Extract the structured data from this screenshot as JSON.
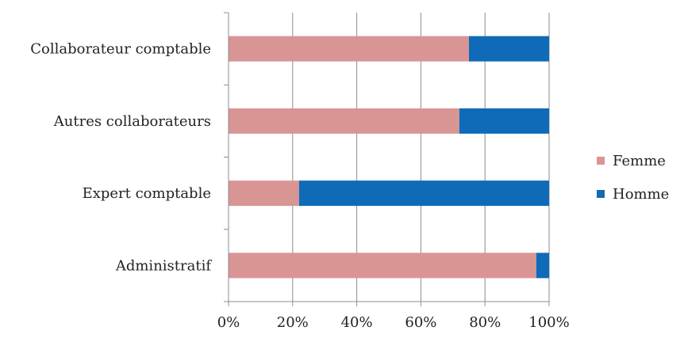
{
  "chart_data": {
    "type": "bar",
    "orientation": "horizontal",
    "stacked": "percent",
    "categories": [
      "Collaborateur comptable",
      "Autres collaborateurs",
      "Expert comptable",
      "Administratif"
    ],
    "series": [
      {
        "name": "Femme",
        "color": "#d99594",
        "values": [
          75,
          72,
          22,
          96
        ]
      },
      {
        "name": "Homme",
        "color": "#0f6bb7",
        "values": [
          25,
          28,
          78,
          4
        ]
      }
    ],
    "xlim": [
      0,
      100
    ],
    "x_ticks": [
      "0%",
      "20%",
      "40%",
      "60%",
      "80%",
      "100%"
    ],
    "grid": true,
    "legend_position": "right"
  }
}
